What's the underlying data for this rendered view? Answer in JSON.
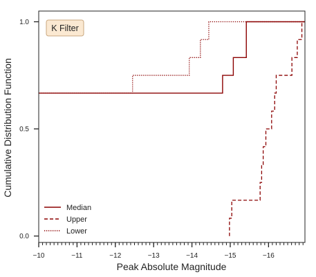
{
  "chart_data": {
    "type": "line",
    "step": true,
    "xlabel": "Peak Absolute Magnitude",
    "ylabel": "Cumulative Distribution Function",
    "xlim": [
      -10,
      -16.95
    ],
    "ylim": [
      -0.03,
      1.05
    ],
    "x_axis_inverted": true,
    "x_ticks": [
      -10,
      -11,
      -12,
      -13,
      -14,
      -15,
      -16
    ],
    "x_tick_labels": [
      "−10",
      "−11",
      "−12",
      "−13",
      "−14",
      "−15",
      "−16"
    ],
    "y_ticks": [
      0.0,
      0.5,
      1.0
    ],
    "y_tick_labels": [
      "0.0",
      "0.5",
      "1.0"
    ],
    "x_minor_tick_step": 0.1,
    "grid": false,
    "legend_position": "bottom-left",
    "annotation": "K Filter",
    "colors": {
      "line": "#8b0000",
      "badge_fill": "#fbe9d2",
      "badge_border": "#c9a77e"
    },
    "series": [
      {
        "name": "Median",
        "style": "solid",
        "x": [
          -10,
          -14.8,
          -14.8,
          -15.08,
          -15.08,
          -15.42,
          -15.42,
          -16.95
        ],
        "y": [
          0.667,
          0.667,
          0.75,
          0.75,
          0.833,
          0.833,
          1.0,
          1.0
        ]
      },
      {
        "name": "Upper",
        "style": "dashed",
        "x": [
          -14.98,
          -14.98,
          -15.04,
          -15.04,
          -15.78,
          -15.78,
          -15.82,
          -15.82,
          -15.86,
          -15.86,
          -15.93,
          -15.93,
          -16.08,
          -16.08,
          -16.16,
          -16.16,
          -16.2,
          -16.2,
          -16.61,
          -16.61,
          -16.75,
          -16.75,
          -16.87,
          -16.87,
          -16.95
        ],
        "y": [
          0.0,
          0.083,
          0.083,
          0.167,
          0.167,
          0.25,
          0.25,
          0.333,
          0.333,
          0.417,
          0.417,
          0.5,
          0.5,
          0.583,
          0.583,
          0.667,
          0.667,
          0.75,
          0.75,
          0.833,
          0.833,
          0.917,
          0.917,
          1.0,
          1.0
        ]
      },
      {
        "name": "Lower",
        "style": "dotted",
        "x": [
          -10,
          -12.45,
          -12.45,
          -13.93,
          -13.93,
          -14.22,
          -14.22,
          -14.44,
          -14.44,
          -16.95
        ],
        "y": [
          0.667,
          0.667,
          0.75,
          0.75,
          0.833,
          0.833,
          0.917,
          0.917,
          1.0,
          1.0
        ]
      }
    ]
  }
}
